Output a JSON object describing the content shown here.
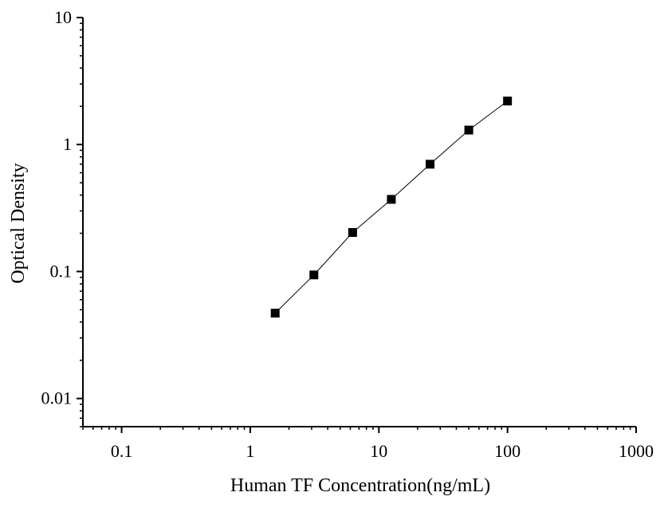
{
  "chart_data": {
    "type": "scatter",
    "title": "",
    "xlabel": "Human TF Concentration(ng/mL)",
    "ylabel": "Optical Density",
    "x_scale": "log",
    "y_scale": "log",
    "xlim": [
      0.05,
      1000
    ],
    "ylim": [
      0.006,
      10
    ],
    "x_ticks": [
      0.1,
      1,
      10,
      100,
      1000
    ],
    "x_tick_labels": [
      "0.1",
      "1",
      "10",
      "100",
      "1000"
    ],
    "y_ticks": [
      0.01,
      0.1,
      1,
      10
    ],
    "y_tick_labels": [
      "0.01",
      "0.1",
      "1",
      "10"
    ],
    "grid": false,
    "legend": "none",
    "series": [
      {
        "marker": "square",
        "line": true,
        "color": "#000000",
        "x": [
          1.5625,
          3.125,
          6.25,
          12.5,
          25,
          50,
          100
        ],
        "y": [
          0.047,
          0.094,
          0.203,
          0.37,
          0.7,
          1.3,
          2.2
        ]
      }
    ]
  }
}
